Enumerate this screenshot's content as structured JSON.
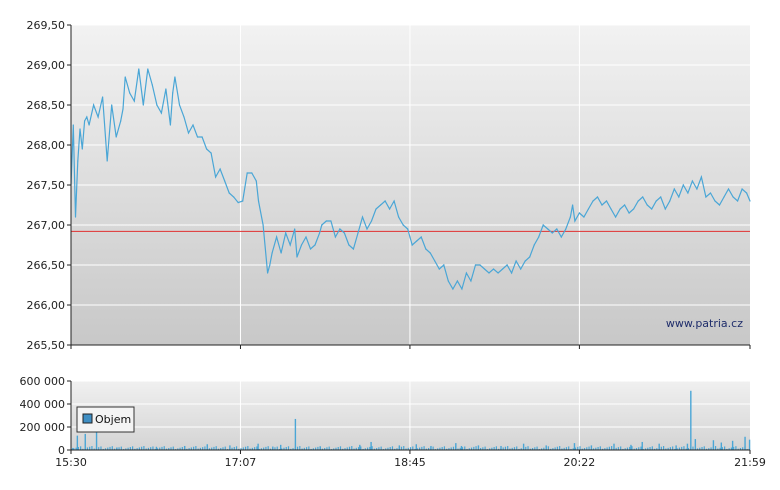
{
  "watermark": "www.patria.cz",
  "colors": {
    "price_line": "#4aa6d6",
    "reference_line": "#e03030",
    "volume_bar": "#4aa6d6",
    "legend_swatch": "#3f8fc4"
  },
  "chart_data": [
    {
      "type": "line",
      "series": [
        {
          "values": [
            [
              0,
              267.5
            ],
            [
              2,
              268.25
            ],
            [
              4,
              267.1
            ],
            [
              6,
              267.8
            ],
            [
              8,
              268.2
            ],
            [
              10,
              267.95
            ],
            [
              12,
              268.3
            ],
            [
              14,
              268.35
            ],
            [
              16,
              268.25
            ],
            [
              20,
              268.5
            ],
            [
              24,
              268.35
            ],
            [
              28,
              268.6
            ],
            [
              32,
              267.8
            ],
            [
              36,
              268.5
            ],
            [
              40,
              268.1
            ],
            [
              44,
              268.3
            ],
            [
              46,
              268.45
            ],
            [
              48,
              268.85
            ],
            [
              52,
              268.65
            ],
            [
              56,
              268.55
            ],
            [
              60,
              268.95
            ],
            [
              64,
              268.5
            ],
            [
              68,
              268.95
            ],
            [
              72,
              268.75
            ],
            [
              76,
              268.5
            ],
            [
              80,
              268.4
            ],
            [
              84,
              268.7
            ],
            [
              88,
              268.25
            ],
            [
              90,
              268.65
            ],
            [
              92,
              268.85
            ],
            [
              96,
              268.5
            ],
            [
              100,
              268.35
            ],
            [
              104,
              268.15
            ],
            [
              108,
              268.25
            ],
            [
              112,
              268.1
            ],
            [
              116,
              268.1
            ],
            [
              120,
              267.95
            ],
            [
              124,
              267.9
            ],
            [
              128,
              267.6
            ],
            [
              132,
              267.7
            ],
            [
              136,
              267.55
            ],
            [
              140,
              267.4
            ],
            [
              144,
              267.35
            ],
            [
              148,
              267.28
            ],
            [
              152,
              267.3
            ],
            [
              156,
              267.65
            ],
            [
              160,
              267.65
            ],
            [
              164,
              267.55
            ],
            [
              166,
              267.3
            ],
            [
              170,
              267.0
            ],
            [
              174,
              266.4
            ],
            [
              176,
              266.5
            ],
            [
              178,
              266.65
            ],
            [
              182,
              266.85
            ],
            [
              186,
              266.65
            ],
            [
              190,
              266.9
            ],
            [
              194,
              266.75
            ],
            [
              198,
              266.95
            ],
            [
              200,
              266.6
            ],
            [
              204,
              266.75
            ],
            [
              208,
              266.85
            ],
            [
              212,
              266.7
            ],
            [
              216,
              266.75
            ],
            [
              220,
              266.9
            ],
            [
              222,
              267.0
            ],
            [
              226,
              267.05
            ],
            [
              230,
              267.05
            ],
            [
              234,
              266.85
            ],
            [
              238,
              266.95
            ],
            [
              242,
              266.9
            ],
            [
              246,
              266.75
            ],
            [
              250,
              266.7
            ],
            [
              254,
              266.9
            ],
            [
              258,
              267.1
            ],
            [
              262,
              266.95
            ],
            [
              266,
              267.05
            ],
            [
              270,
              267.2
            ],
            [
              274,
              267.25
            ],
            [
              278,
              267.3
            ],
            [
              282,
              267.2
            ],
            [
              286,
              267.3
            ],
            [
              290,
              267.1
            ],
            [
              294,
              267.0
            ],
            [
              298,
              266.95
            ],
            [
              302,
              266.75
            ],
            [
              306,
              266.8
            ],
            [
              310,
              266.85
            ],
            [
              314,
              266.7
            ],
            [
              318,
              266.65
            ],
            [
              322,
              266.55
            ],
            [
              326,
              266.45
            ],
            [
              330,
              266.5
            ],
            [
              334,
              266.3
            ],
            [
              338,
              266.2
            ],
            [
              342,
              266.3
            ],
            [
              346,
              266.2
            ],
            [
              350,
              266.4
            ],
            [
              354,
              266.3
            ],
            [
              358,
              266.5
            ],
            [
              362,
              266.5
            ],
            [
              366,
              266.45
            ],
            [
              370,
              266.4
            ],
            [
              374,
              266.45
            ],
            [
              378,
              266.4
            ],
            [
              382,
              266.45
            ],
            [
              386,
              266.5
            ],
            [
              390,
              266.4
            ],
            [
              394,
              266.55
            ],
            [
              398,
              266.45
            ],
            [
              402,
              266.55
            ],
            [
              406,
              266.6
            ],
            [
              410,
              266.75
            ],
            [
              414,
              266.85
            ],
            [
              418,
              267.0
            ],
            [
              422,
              266.95
            ],
            [
              426,
              266.9
            ],
            [
              430,
              266.95
            ],
            [
              434,
              266.85
            ],
            [
              438,
              266.95
            ],
            [
              442,
              267.1
            ],
            [
              444,
              267.25
            ],
            [
              446,
              267.05
            ],
            [
              450,
              267.15
            ],
            [
              454,
              267.1
            ],
            [
              458,
              267.2
            ],
            [
              462,
              267.3
            ],
            [
              466,
              267.35
            ],
            [
              470,
              267.25
            ],
            [
              474,
              267.3
            ],
            [
              478,
              267.2
            ],
            [
              482,
              267.1
            ],
            [
              486,
              267.2
            ],
            [
              490,
              267.25
            ],
            [
              494,
              267.15
            ],
            [
              498,
              267.2
            ],
            [
              502,
              267.3
            ],
            [
              506,
              267.35
            ],
            [
              510,
              267.25
            ],
            [
              514,
              267.2
            ],
            [
              518,
              267.3
            ],
            [
              522,
              267.35
            ],
            [
              526,
              267.2
            ],
            [
              530,
              267.3
            ],
            [
              534,
              267.45
            ],
            [
              538,
              267.35
            ],
            [
              542,
              267.5
            ],
            [
              546,
              267.4
            ],
            [
              550,
              267.55
            ],
            [
              554,
              267.45
            ],
            [
              558,
              267.6
            ],
            [
              562,
              267.35
            ],
            [
              566,
              267.4
            ],
            [
              570,
              267.3
            ],
            [
              574,
              267.25
            ],
            [
              578,
              267.35
            ],
            [
              582,
              267.45
            ],
            [
              586,
              267.35
            ],
            [
              590,
              267.3
            ],
            [
              594,
              267.45
            ],
            [
              598,
              267.4
            ],
            [
              601,
              267.3
            ]
          ]
        }
      ],
      "reference_value": 266.92,
      "ylim": [
        265.5,
        269.5
      ],
      "y_ticks": [
        "269,50",
        "269,00",
        "268,50",
        "268,00",
        "267,50",
        "267,00",
        "266,50",
        "266,00",
        "265,50"
      ],
      "y_tick_values": [
        269.5,
        269.0,
        268.5,
        268.0,
        267.5,
        267.0,
        266.5,
        266.0,
        265.5
      ],
      "x_ticks": [
        "15:30",
        "17:07",
        "18:45",
        "20:22",
        "21:59"
      ],
      "x_tick_values": [
        0,
        150,
        300,
        450,
        601
      ],
      "xlim": [
        0,
        601
      ],
      "grid": true
    },
    {
      "type": "bar",
      "legend": {
        "label": "Objem",
        "placement": "top-left"
      },
      "series": [
        {
          "name": "Objem",
          "values": [
            [
              1,
              18000
            ],
            [
              5,
              125000
            ],
            [
              12,
              140000
            ],
            [
              22,
              175000
            ],
            [
              40,
              22000
            ],
            [
              75,
              28000
            ],
            [
              100,
              35000
            ],
            [
              120,
              50000
            ],
            [
              140,
              40000
            ],
            [
              165,
              55000
            ],
            [
              178,
              30000
            ],
            [
              185,
              45000
            ],
            [
              198,
              270000
            ],
            [
              220,
              30000
            ],
            [
              255,
              45000
            ],
            [
              265,
              70000
            ],
            [
              290,
              40000
            ],
            [
              305,
              50000
            ],
            [
              318,
              35000
            ],
            [
              340,
              60000
            ],
            [
              345,
              35000
            ],
            [
              360,
              40000
            ],
            [
              380,
              35000
            ],
            [
              400,
              55000
            ],
            [
              420,
              40000
            ],
            [
              445,
              60000
            ],
            [
              460,
              40000
            ],
            [
              480,
              55000
            ],
            [
              495,
              45000
            ],
            [
              505,
              70000
            ],
            [
              520,
              55000
            ],
            [
              535,
              40000
            ],
            [
              545,
              55000
            ],
            [
              552,
              95000
            ],
            [
              568,
              85000
            ],
            [
              575,
              65000
            ],
            [
              585,
              80000
            ],
            [
              596,
              115000
            ],
            [
              600,
              90000
            ]
          ],
          "spike": [
            [
              548,
              515000
            ]
          ]
        }
      ],
      "ylim": [
        0,
        600000
      ],
      "y_ticks": [
        "600 000",
        "400 000",
        "200 000",
        "0"
      ],
      "y_tick_values": [
        600000,
        400000,
        200000,
        0
      ],
      "grid": true
    }
  ]
}
